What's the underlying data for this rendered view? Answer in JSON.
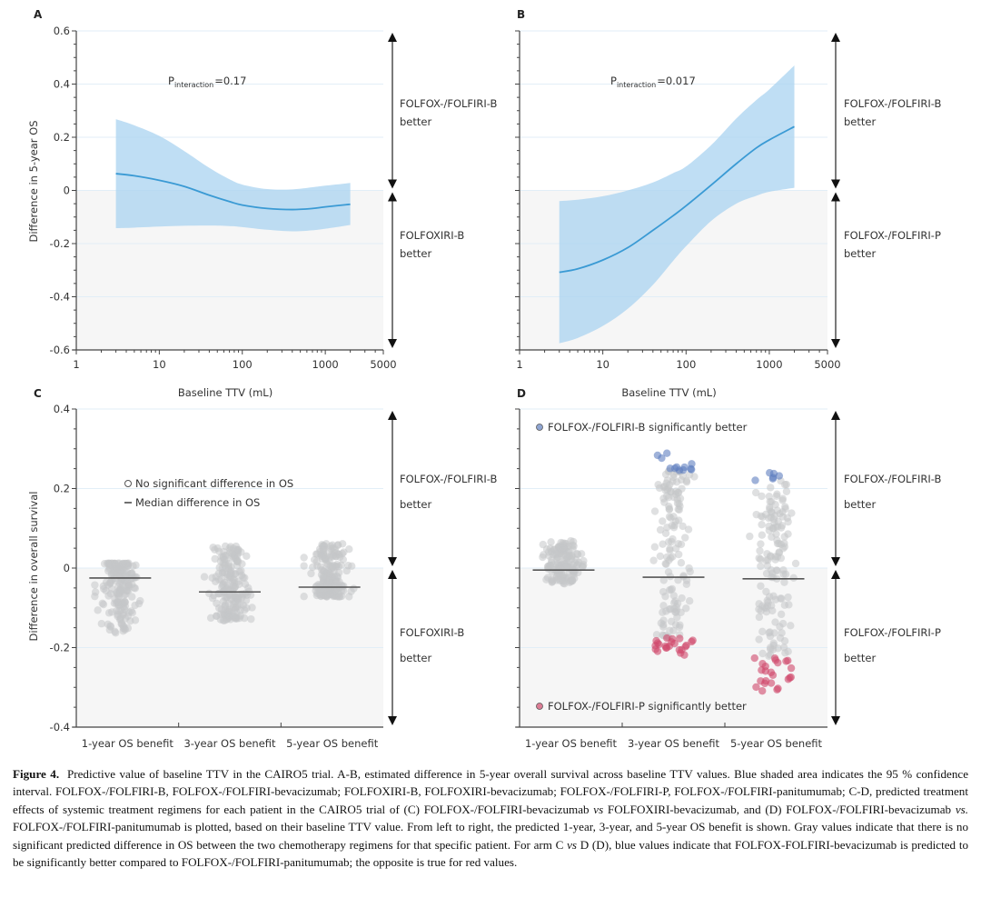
{
  "figure": {
    "caption_label": "Figure 4.",
    "caption_segments": [
      {
        "t": "Predictive value of baseline TTV in the CAIRO5 trial. A-B, estimated difference in 5-year overall survival across baseline TTV values. Blue shaded area indicates the 95 % confidence interval. FOLFOX-/FOLFIRI-B, FOLFOX-/FOLFIRI-bevacizumab; FOLFOXIRI-B, FOLFOXIRI-bevacizumab; FOLFOX-/FOLFIRI-P, FOLFOX-/FOLFIRI-panitumumab; C-D, predicted treatment effects of systemic treatment regimens for each patient in the CAIRO5 trial of (C) FOLFOX-/FOLFIRI-bevacizumab "
      },
      {
        "t": "vs",
        "i": true
      },
      {
        "t": " FOLFOXIRI-bevacizumab, and (D) FOLFOX-/FOLFIRI-bevacizumab "
      },
      {
        "t": "vs.",
        "i": true
      },
      {
        "t": " FOLFOX-/FOLFIRI-panitumumab is plotted, based on their baseline TTV value. From left to right, the predicted 1-year, 3-year, and 5-year OS benefit is shown. Gray values indicate that there is no significant predicted difference in OS between the two chemotherapy regimens for that specific patient. For arm C "
      },
      {
        "t": "vs",
        "i": true
      },
      {
        "t": " D (D), blue values indicate that FOLFOX-FOLFIRI-bevacizumab is predicted to be significantly better compared to FOLFOX-/FOLFIRI-panitumumab; the opposite is true for red values."
      }
    ]
  },
  "colors": {
    "ci_band": "#a9d3f0",
    "curve": "#3a9ad4",
    "lower_bg": "#f6f6f6",
    "grid": "#e2eef7",
    "gray_dot": "#c4c7c9",
    "blue_dot": "#5f7fbf",
    "red_dot": "#d14a6c",
    "median": "#555555",
    "axis": "#444444"
  },
  "chart_data": [
    {
      "panel": "A",
      "type": "area",
      "title": "",
      "xlabel": "Baseline TTV (mL)",
      "ylabel": "Difference in 5-year OS",
      "xscale": "log",
      "xlim": [
        1,
        5000
      ],
      "ylim": [
        -0.6,
        0.6
      ],
      "xticks": [
        "1",
        "10",
        "100",
        "1000",
        "5000"
      ],
      "xtick_values": [
        1,
        10,
        100,
        1000,
        5000
      ],
      "yticks": [
        "0.6",
        "0.4",
        "0.2",
        "0",
        "-0.2",
        "-0.4",
        "-0.6"
      ],
      "ytick_values": [
        0.6,
        0.4,
        0.2,
        0,
        -0.2,
        -0.4,
        -0.6
      ],
      "annotation": {
        "p": "P",
        "sub": "interaction",
        "value": "=0.17"
      },
      "side_labels": {
        "upper": [
          "FOLFOX-/FOLFIRI-B",
          "better"
        ],
        "lower": [
          "FOLFOXIRI-B",
          "better"
        ]
      },
      "x": [
        3,
        5,
        10,
        20,
        40,
        70,
        100,
        200,
        400,
        700,
        1000,
        2000
      ],
      "estimate": [
        0.063,
        0.055,
        0.038,
        0.015,
        -0.018,
        -0.042,
        -0.055,
        -0.068,
        -0.072,
        -0.068,
        -0.062,
        -0.052
      ],
      "ci_upper": [
        0.268,
        0.245,
        0.205,
        0.148,
        0.085,
        0.042,
        0.022,
        0.005,
        0.004,
        0.012,
        0.018,
        0.028
      ],
      "ci_lower": [
        -0.142,
        -0.14,
        -0.136,
        -0.133,
        -0.132,
        -0.134,
        -0.138,
        -0.148,
        -0.154,
        -0.15,
        -0.144,
        -0.13
      ]
    },
    {
      "panel": "B",
      "type": "area",
      "title": "",
      "xlabel": "Baseline TTV (mL)",
      "ylabel": "",
      "xscale": "log",
      "xlim": [
        1,
        5000
      ],
      "ylim": [
        -0.6,
        0.6
      ],
      "xticks": [
        "1",
        "10",
        "100",
        "1000",
        "5000"
      ],
      "xtick_values": [
        1,
        10,
        100,
        1000,
        5000
      ],
      "yticks": [],
      "ytick_values": [
        0.6,
        0.4,
        0.2,
        0,
        -0.2,
        -0.4,
        -0.6
      ],
      "annotation": {
        "p": "P",
        "sub": "interaction",
        "value": "=0.017"
      },
      "side_labels": {
        "upper": [
          "FOLFOX-/FOLFIRI-B",
          "better"
        ],
        "lower": [
          "FOLFOX-/FOLFIRI-P",
          "better"
        ]
      },
      "x": [
        3,
        5,
        10,
        20,
        40,
        70,
        100,
        200,
        400,
        700,
        1000,
        2000
      ],
      "estimate": [
        -0.308,
        -0.295,
        -0.262,
        -0.215,
        -0.15,
        -0.095,
        -0.058,
        0.02,
        0.1,
        0.16,
        0.19,
        0.24
      ],
      "ci_upper": [
        -0.04,
        -0.035,
        -0.022,
        0.0,
        0.03,
        0.065,
        0.09,
        0.17,
        0.27,
        0.34,
        0.38,
        0.47
      ],
      "ci_lower": [
        -0.575,
        -0.555,
        -0.51,
        -0.445,
        -0.355,
        -0.265,
        -0.21,
        -0.115,
        -0.05,
        -0.02,
        -0.005,
        0.01
      ]
    },
    {
      "panel": "C",
      "type": "scatter",
      "xlabel": "",
      "ylabel": "Difference in overall survival",
      "ylim": [
        -0.4,
        0.4
      ],
      "yticks": [
        "0.4",
        "0.2",
        "0",
        "-0.2",
        "-0.4"
      ],
      "ytick_values": [
        0.4,
        0.2,
        0,
        -0.2,
        -0.4
      ],
      "categories": [
        "1-year OS benefit",
        "3-year OS benefit",
        "5-year OS benefit"
      ],
      "legend": [
        {
          "marker": "open-circle",
          "label": "No significant difference in OS"
        },
        {
          "marker": "dash",
          "label": "Median difference in OS"
        }
      ],
      "side_labels": {
        "upper": [
          "FOLFOX-/FOLFIRI-B",
          "better"
        ],
        "lower": [
          "FOLFOXIRI-B",
          "better"
        ]
      },
      "series": [
        {
          "name": "1-year OS benefit",
          "median": -0.025,
          "min": -0.168,
          "max": 0.012,
          "n": 190,
          "gray": 190,
          "blue": 0,
          "red": 0
        },
        {
          "name": "3-year OS benefit",
          "median": -0.06,
          "min": -0.132,
          "max": 0.055,
          "n": 190,
          "gray": 190,
          "blue": 0,
          "red": 0
        },
        {
          "name": "5-year OS benefit",
          "median": -0.048,
          "min": -0.072,
          "max": 0.062,
          "n": 190,
          "gray": 190,
          "blue": 0,
          "red": 0
        }
      ]
    },
    {
      "panel": "D",
      "type": "scatter",
      "xlabel": "",
      "ylabel": "",
      "ylim": [
        -0.4,
        0.4
      ],
      "yticks": [],
      "ytick_values": [
        0.4,
        0.2,
        0,
        -0.2,
        -0.4
      ],
      "categories": [
        "1-year OS benefit",
        "3-year OS benefit",
        "5-year OS benefit"
      ],
      "legend": [
        {
          "marker": "blue-dot",
          "label": "FOLFOX-/FOLFIRI-B significantly better"
        },
        {
          "marker": "red-dot",
          "label": "FOLFOX-/FOLFIRI-P significantly better"
        }
      ],
      "side_labels": {
        "upper": [
          "FOLFOX-/FOLFIRI-B",
          "better"
        ],
        "lower": [
          "FOLFOX-/FOLFIRI-P",
          "better"
        ]
      },
      "series": [
        {
          "name": "1-year OS benefit",
          "median": -0.005,
          "min": -0.04,
          "max": 0.07,
          "n": 150,
          "gray": 150,
          "blue": 0,
          "red": 0,
          "blue_range": null,
          "red_range": null
        },
        {
          "name": "3-year OS benefit",
          "median": -0.023,
          "min": -0.225,
          "max": 0.295,
          "n": 170,
          "gray": 135,
          "blue": 12,
          "red": 23,
          "blue_range": [
            0.245,
            0.295
          ],
          "red_range": [
            -0.225,
            -0.175
          ]
        },
        {
          "name": "5-year OS benefit",
          "median": -0.027,
          "min": -0.31,
          "max": 0.24,
          "n": 170,
          "gray": 140,
          "blue": 6,
          "red": 24,
          "blue_range": [
            0.22,
            0.24
          ],
          "red_range": [
            -0.31,
            -0.225
          ]
        }
      ]
    }
  ]
}
